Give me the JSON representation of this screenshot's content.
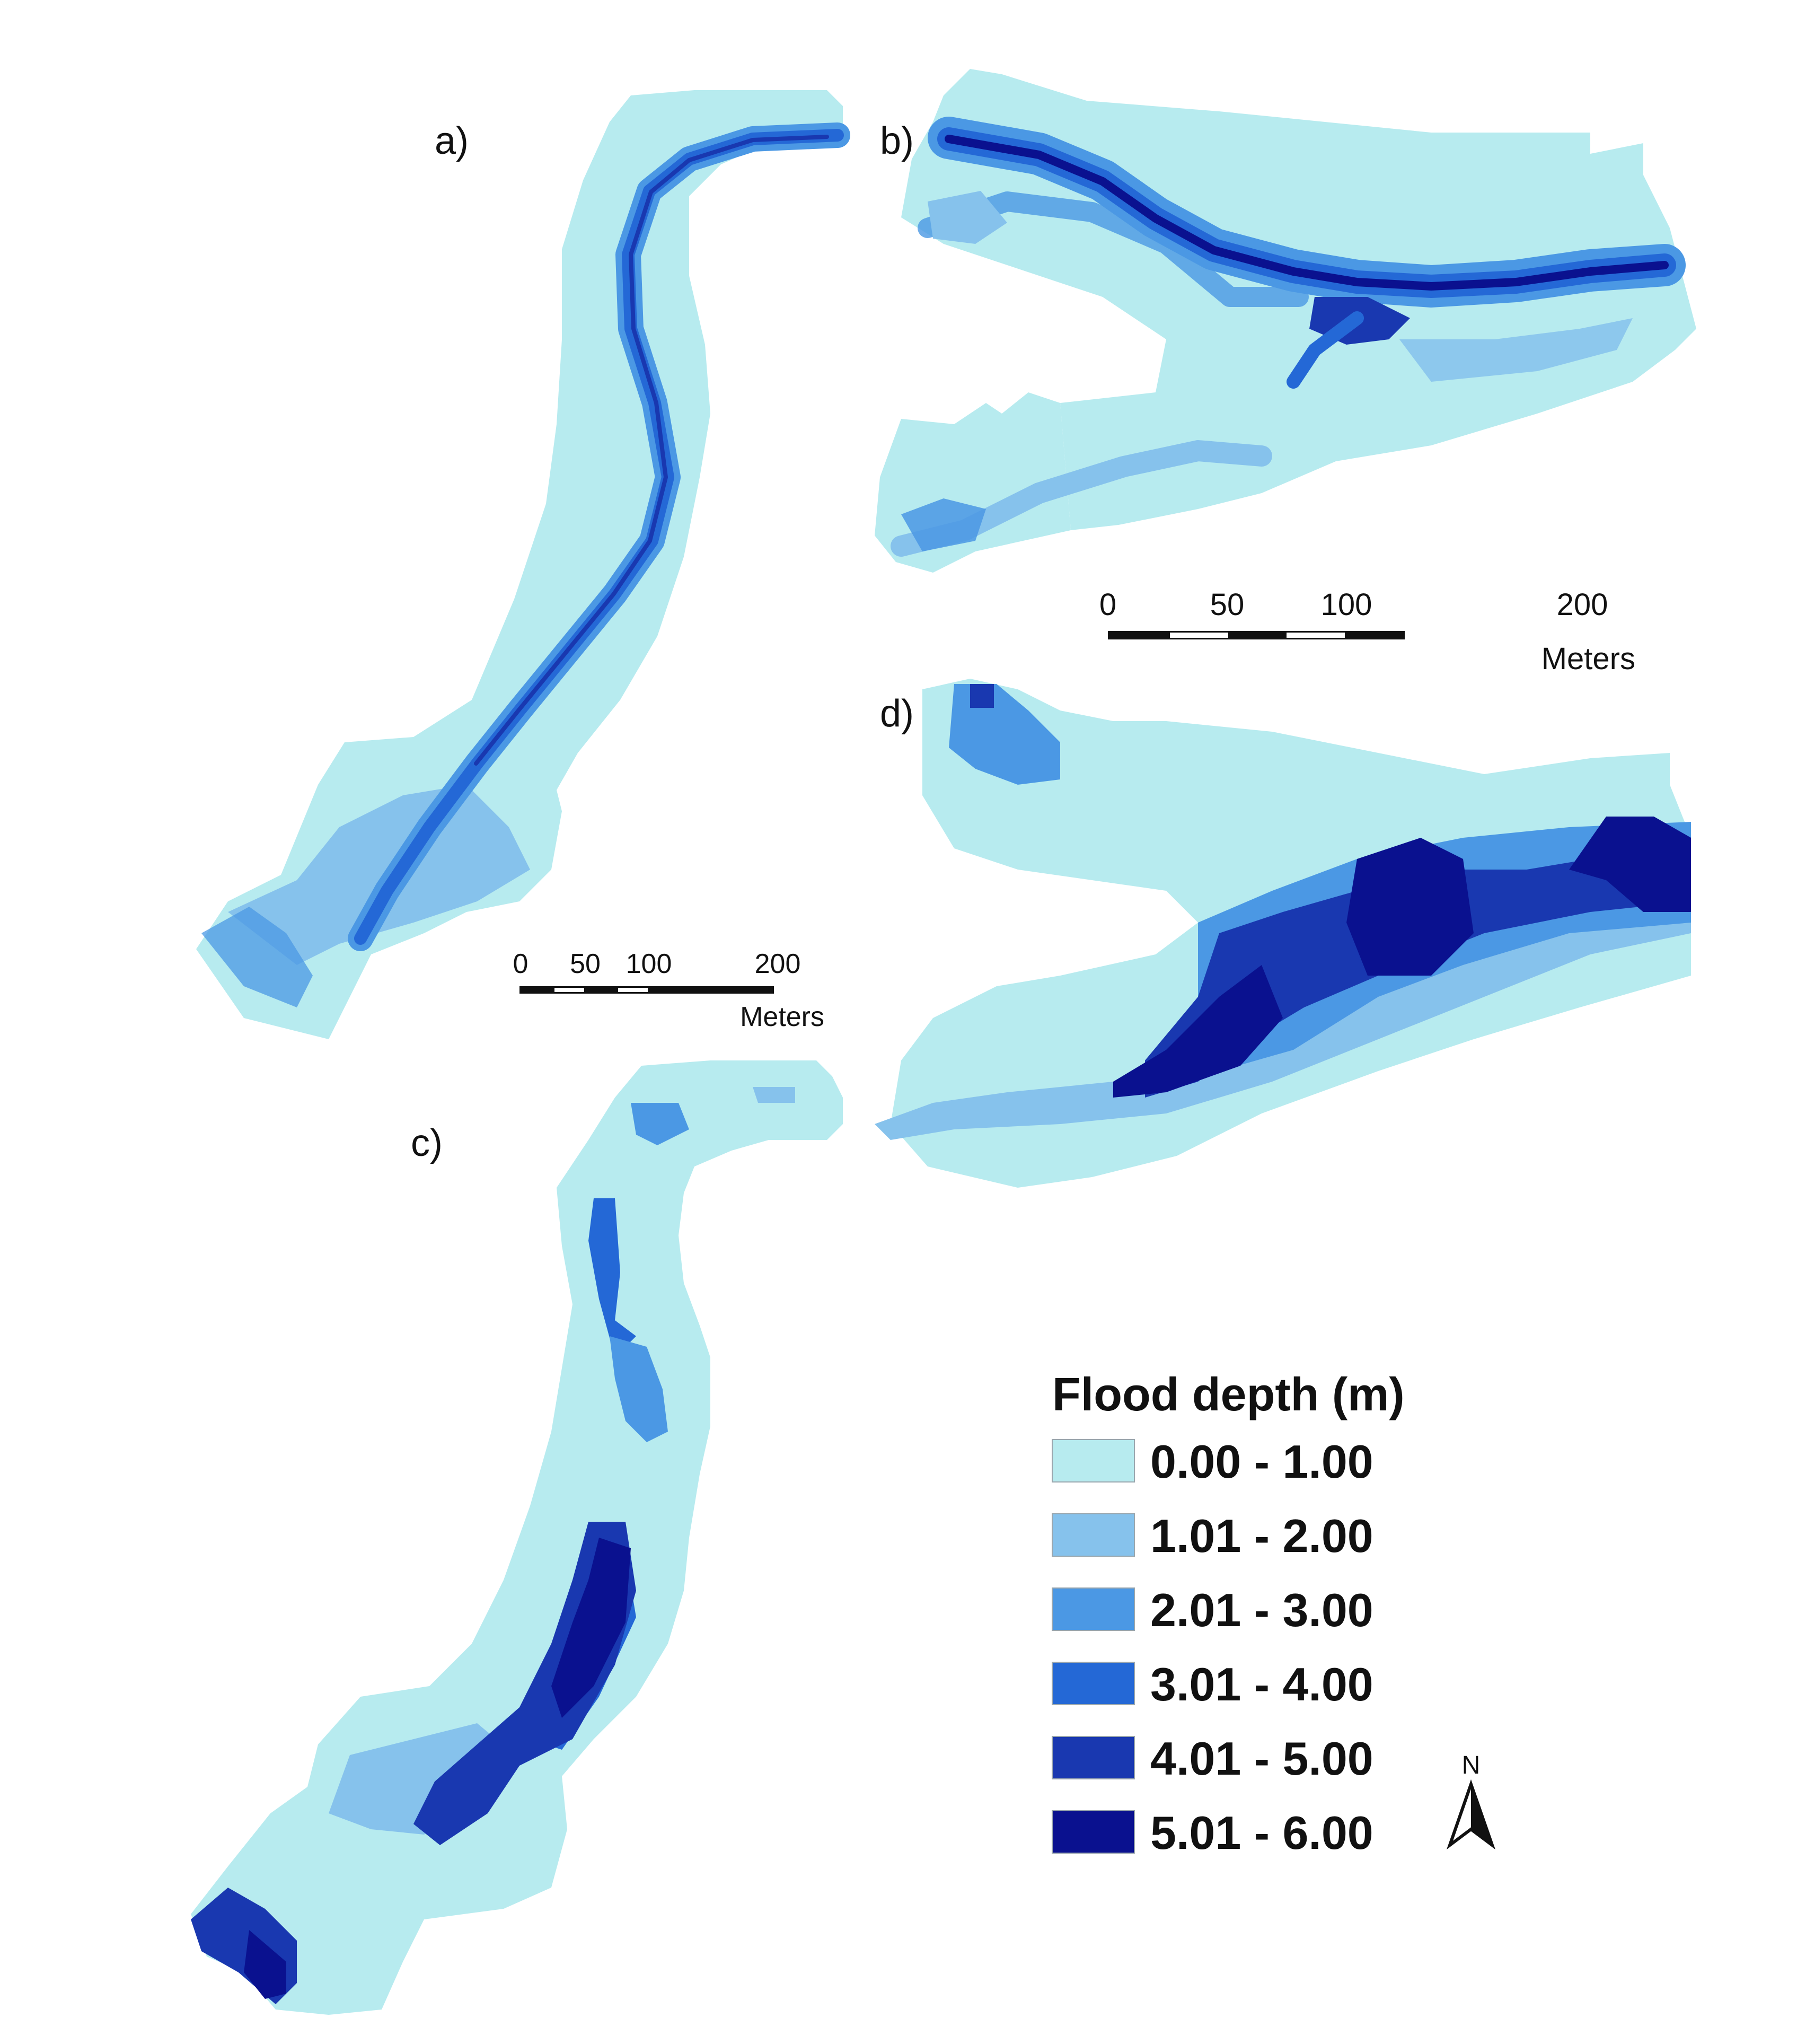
{
  "panels": {
    "a": {
      "label": "a)"
    },
    "b": {
      "label": "b)"
    },
    "c": {
      "label": "c)"
    },
    "d": {
      "label": "d)"
    }
  },
  "scalebars": [
    {
      "ticks": [
        "0",
        "50",
        "100",
        "200"
      ],
      "unit": "Meters"
    },
    {
      "ticks": [
        "0",
        "50",
        "100",
        "200"
      ],
      "unit": "Meters"
    }
  ],
  "legend": {
    "title": "Flood depth (m)",
    "classes": [
      {
        "label": "0.00 - 1.00",
        "color": "#b7ebef"
      },
      {
        "label": "1.01 - 2.00",
        "color": "#86c2ec"
      },
      {
        "label": "2.01 - 3.00",
        "color": "#4b98e4"
      },
      {
        "label": "3.01 - 4.00",
        "color": "#2468d6"
      },
      {
        "label": "4.01 - 5.00",
        "color": "#1938b0"
      },
      {
        "label": "5.01 - 6.00",
        "color": "#0a118f"
      }
    ]
  },
  "north_arrow": {
    "label": "N"
  }
}
